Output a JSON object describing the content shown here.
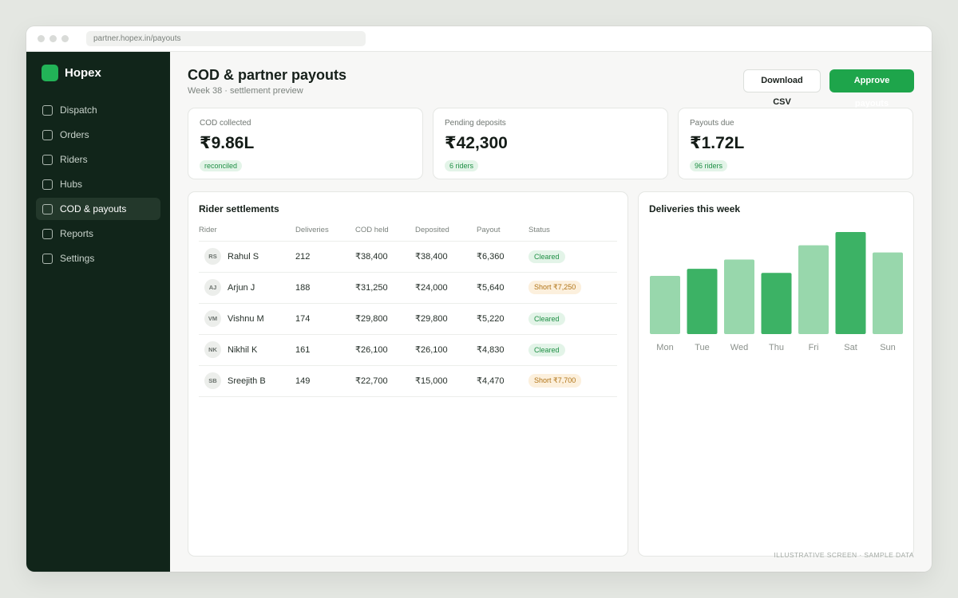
{
  "browser": {
    "url": "partner.hopex.in/payouts"
  },
  "sidebar": {
    "brand": "Hopex",
    "items": [
      {
        "label": "Dispatch",
        "active": false
      },
      {
        "label": "Orders",
        "active": false
      },
      {
        "label": "Riders",
        "active": false
      },
      {
        "label": "Hubs",
        "active": false
      },
      {
        "label": "COD & payouts",
        "active": true
      },
      {
        "label": "Reports",
        "active": false
      },
      {
        "label": "Settings",
        "active": false
      }
    ]
  },
  "header": {
    "title": "COD & partner payouts",
    "subtitle": "Week 38 · settlement preview",
    "download_label": "Download CSV",
    "approve_label": "Approve payouts"
  },
  "kpis": [
    {
      "label": "COD collected",
      "value": "₹9.86L",
      "badge": "reconciled"
    },
    {
      "label": "Pending deposits",
      "value": "₹42,300",
      "badge": "6 riders"
    },
    {
      "label": "Payouts due",
      "value": "₹1.72L",
      "badge": "96 riders"
    }
  ],
  "settlements": {
    "title": "Rider settlements",
    "columns": [
      "Rider",
      "Deliveries",
      "COD held",
      "Deposited",
      "Payout",
      "Status"
    ],
    "rows": [
      {
        "initials": "RS",
        "rider": "Rahul S",
        "deliveries": "212",
        "cod_held": "₹38,400",
        "deposited": "₹38,400",
        "payout": "₹6,360",
        "status": "Cleared",
        "status_type": "ok"
      },
      {
        "initials": "AJ",
        "rider": "Arjun J",
        "deliveries": "188",
        "cod_held": "₹31,250",
        "deposited": "₹24,000",
        "payout": "₹5,640",
        "status": "Short ₹7,250",
        "status_type": "short"
      },
      {
        "initials": "VM",
        "rider": "Vishnu M",
        "deliveries": "174",
        "cod_held": "₹29,800",
        "deposited": "₹29,800",
        "payout": "₹5,220",
        "status": "Cleared",
        "status_type": "ok"
      },
      {
        "initials": "NK",
        "rider": "Nikhil K",
        "deliveries": "161",
        "cod_held": "₹26,100",
        "deposited": "₹26,100",
        "payout": "₹4,830",
        "status": "Cleared",
        "status_type": "ok"
      },
      {
        "initials": "SB",
        "rider": "Sreejith B",
        "deliveries": "149",
        "cod_held": "₹22,700",
        "deposited": "₹15,000",
        "payout": "₹4,470",
        "status": "Short ₹7,700",
        "status_type": "short"
      }
    ]
  },
  "chart_data": {
    "type": "bar",
    "title": "Deliveries this week",
    "categories": [
      "Mon",
      "Tue",
      "Wed",
      "Thu",
      "Fri",
      "Sat",
      "Sun"
    ],
    "values": [
      57,
      64,
      73,
      60,
      87,
      100,
      80
    ],
    "ylim": [
      0,
      100
    ],
    "highlight": [
      false,
      true,
      false,
      true,
      false,
      true,
      false
    ],
    "colors": {
      "light": "#98d7ac",
      "dark": "#3cb265"
    },
    "grid": false,
    "legend": "none"
  },
  "footer": {
    "note": "ILLUSTRATIVE SCREEN · SAMPLE DATA"
  }
}
